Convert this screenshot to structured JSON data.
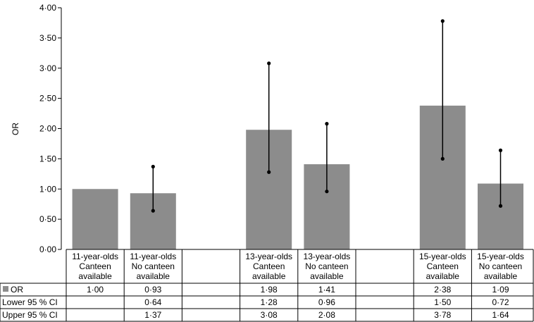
{
  "chart_data": {
    "type": "bar",
    "ylabel": "OR",
    "ylim": [
      0,
      4
    ],
    "yticks": [
      "0·00",
      "0·50",
      "1·00",
      "1·50",
      "2·00",
      "2·50",
      "3·00",
      "3·50",
      "4·00"
    ],
    "bar_color": "#8c8c8c",
    "grid": false,
    "legend": "table-row",
    "groups": [
      {
        "bars": [
          {
            "line1": "11-year-olds",
            "line2": "Canteen",
            "line3": "available",
            "or": 1.0,
            "lower": null,
            "upper": null,
            "or_label": "1·00",
            "lower_label": "",
            "upper_label": ""
          },
          {
            "line1": "11-year-olds",
            "line2": "No canteen",
            "line3": "available",
            "or": 0.93,
            "lower": 0.64,
            "upper": 1.37,
            "or_label": "0·93",
            "lower_label": "0·64",
            "upper_label": "1·37"
          }
        ]
      },
      {
        "bars": [
          {
            "line1": "13-year-olds",
            "line2": "Canteen",
            "line3": "available",
            "or": 1.98,
            "lower": 1.28,
            "upper": 3.08,
            "or_label": "1·98",
            "lower_label": "1·28",
            "upper_label": "3·08"
          },
          {
            "line1": "13-year-olds",
            "line2": "No canteen",
            "line3": "available",
            "or": 1.41,
            "lower": 0.96,
            "upper": 2.08,
            "or_label": "1·41",
            "lower_label": "0·96",
            "upper_label": "2·08"
          }
        ]
      },
      {
        "bars": [
          {
            "line1": "15-year-olds",
            "line2": "Canteen",
            "line3": "available",
            "or": 2.38,
            "lower": 1.5,
            "upper": 3.78,
            "or_label": "2·38",
            "lower_label": "1·50",
            "upper_label": "3·78"
          },
          {
            "line1": "15-year-olds",
            "line2": "No canteen",
            "line3": "available",
            "or": 1.09,
            "lower": 0.72,
            "upper": 1.64,
            "or_label": "1·09",
            "lower_label": "0·72",
            "upper_label": "1·64"
          }
        ]
      }
    ],
    "table_rows": [
      "OR",
      "Lower 95 % CI",
      "Upper 95 % CI"
    ]
  }
}
